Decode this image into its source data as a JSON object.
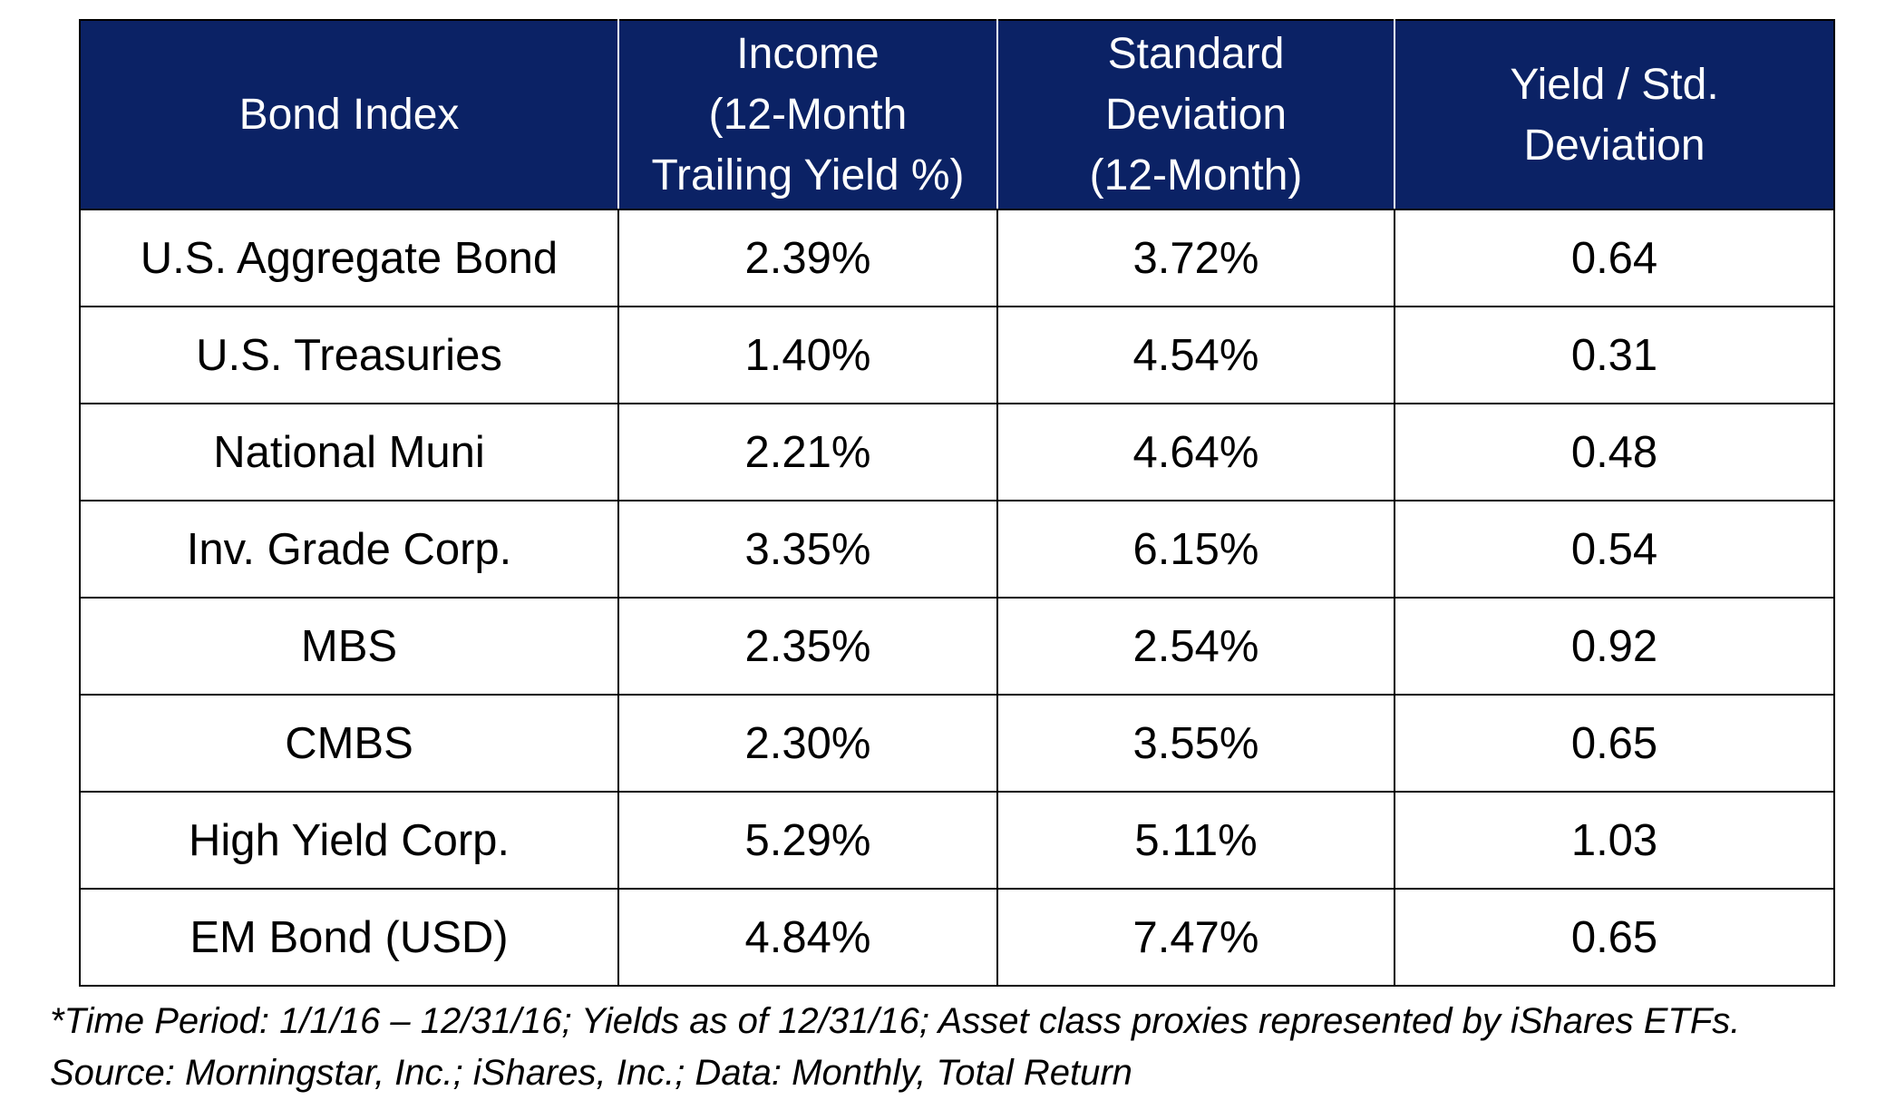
{
  "table": {
    "headers": [
      {
        "lines": [
          "Bond Index"
        ]
      },
      {
        "lines": [
          "Income",
          "(12-Month",
          "Trailing Yield %)"
        ]
      },
      {
        "lines": [
          "Standard",
          "Deviation",
          "(12-Month)"
        ]
      },
      {
        "lines": [
          "Yield / Std.",
          "Deviation"
        ]
      }
    ],
    "rows": [
      [
        "U.S. Aggregate Bond",
        "2.39%",
        "3.72%",
        "0.64"
      ],
      [
        "U.S. Treasuries",
        "1.40%",
        "4.54%",
        "0.31"
      ],
      [
        "National Muni",
        "2.21%",
        "4.64%",
        "0.48"
      ],
      [
        "Inv. Grade Corp.",
        "3.35%",
        "6.15%",
        "0.54"
      ],
      [
        "MBS",
        "2.35%",
        "2.54%",
        "0.92"
      ],
      [
        "CMBS",
        "2.30%",
        "3.55%",
        "0.65"
      ],
      [
        "High Yield Corp.",
        "5.29%",
        "5.11%",
        "1.03"
      ],
      [
        "EM Bond (USD)",
        "4.84%",
        "7.47%",
        "0.65"
      ]
    ]
  },
  "footnote": {
    "line1": "*Time Period: 1/1/16 – 12/31/16; Yields as of 12/31/16; Asset class proxies represented by iShares ETFs.",
    "line2": "Source: Morningstar, Inc.; iShares, Inc.; Data: Monthly, Total Return"
  },
  "colors": {
    "header_background": "#0b2265",
    "header_text": "#ffffff",
    "border": "#000000"
  }
}
